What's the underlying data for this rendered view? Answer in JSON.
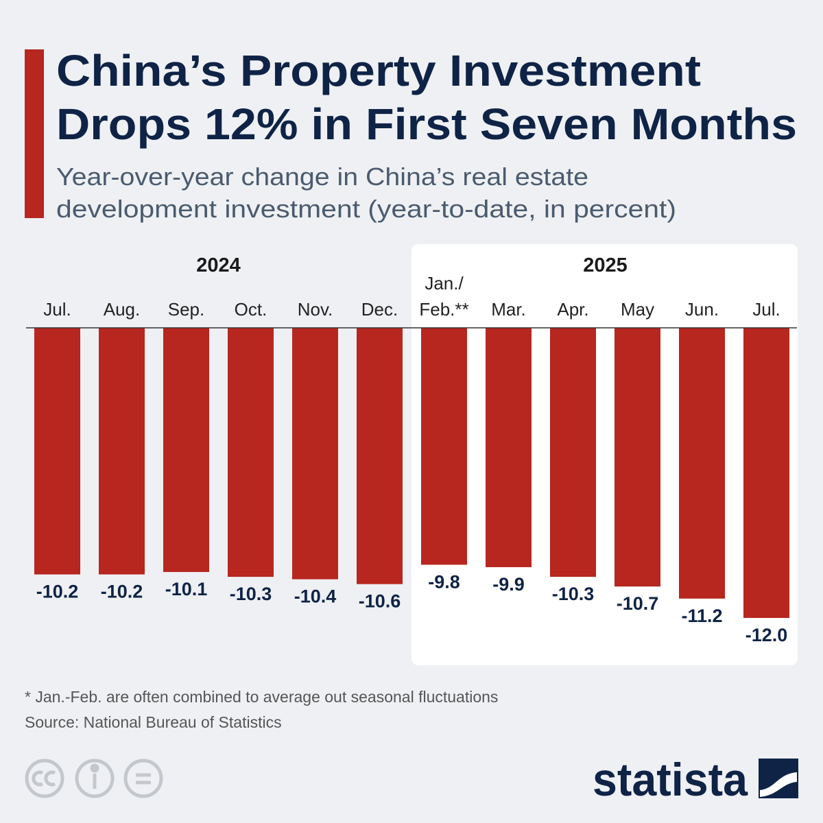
{
  "chart_data": {
    "type": "bar",
    "title": [
      "China’s Property Investment",
      "Drops 12% in First Seven Months"
    ],
    "subtitle": [
      "Year-over-year change in China’s real estate",
      "development investment (year-to-date, in percent)"
    ],
    "groups": [
      "2024",
      "2025"
    ],
    "categories": [
      "Jul.",
      "Aug.",
      "Sep.",
      "Oct.",
      "Nov.",
      "Dec.",
      "Jan./Feb.**",
      "Mar.",
      "Apr.",
      "May",
      "Jun.",
      "Jul."
    ],
    "values": [
      -10.2,
      -10.2,
      -10.1,
      -10.3,
      -10.4,
      -10.6,
      -9.8,
      -9.9,
      -10.3,
      -10.7,
      -11.2,
      -12.0
    ],
    "value_labels": [
      "-10.2",
      "-10.2",
      "-10.1",
      "-10.3",
      "-10.4",
      "-10.6",
      "-9.8",
      "-9.9",
      "-10.3",
      "-10.7",
      "-11.2",
      "-12.0"
    ],
    "color": "#b7261f",
    "ylim": [
      -12,
      0
    ],
    "footnote": "* Jan.-Feb. are often combined to average out seasonal fluctuations",
    "source": "Source: National Bureau of Statistics",
    "brand": "statista"
  }
}
